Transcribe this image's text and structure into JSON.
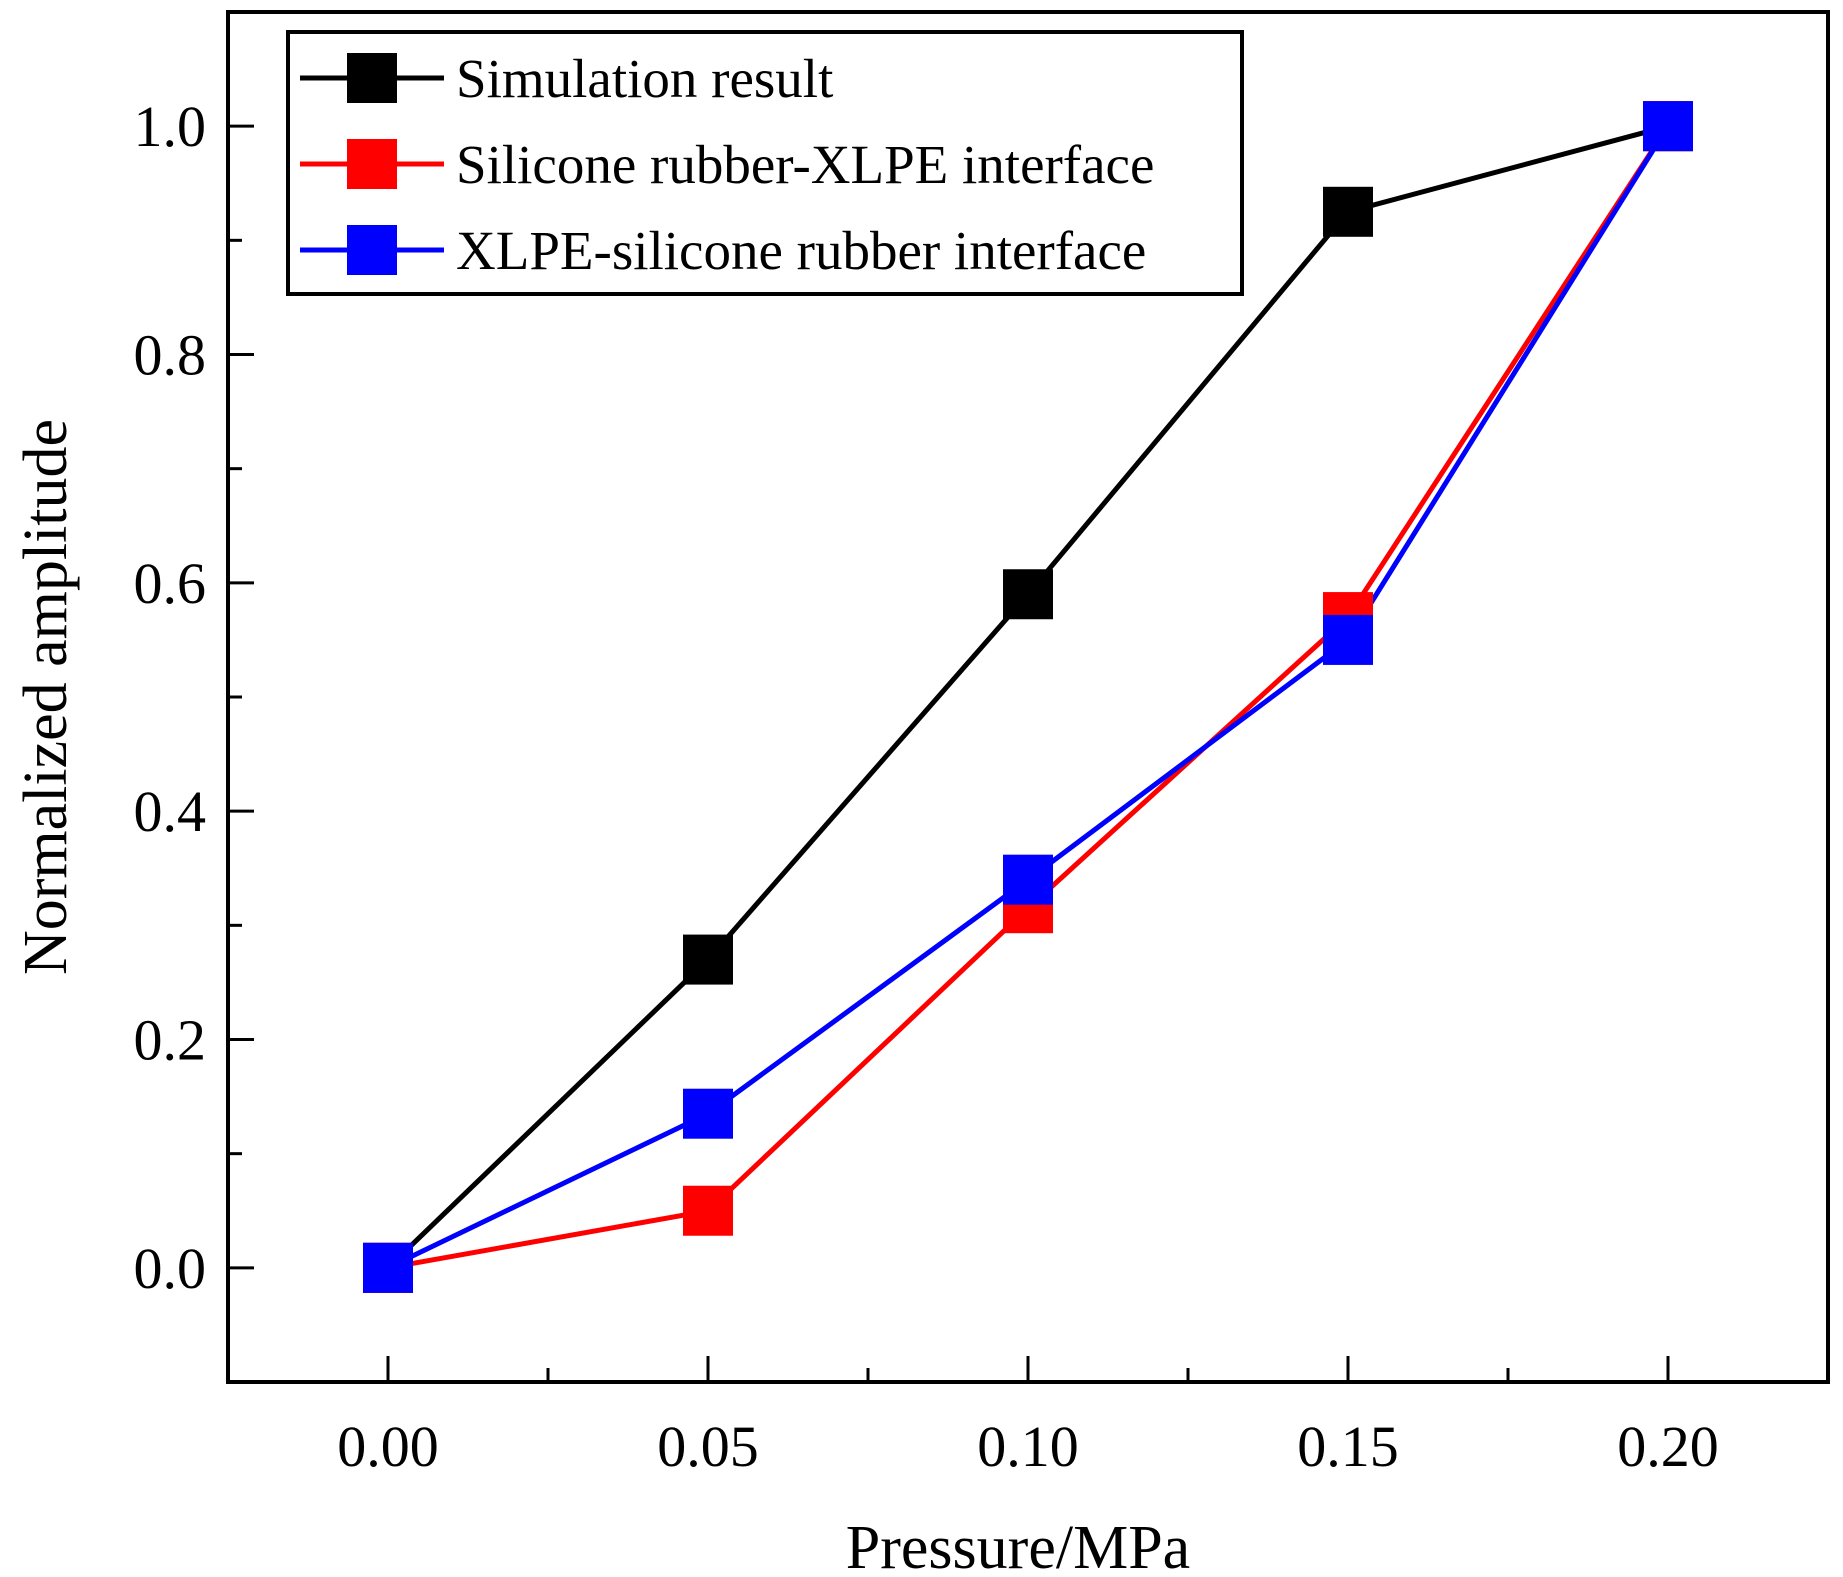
{
  "chart_data": {
    "type": "line",
    "title": "",
    "xlabel": "Pressure/MPa",
    "ylabel": "Normalized amplitude",
    "x": [
      0.0,
      0.05,
      0.1,
      0.15,
      0.2
    ],
    "xlim": [
      -0.025,
      0.225
    ],
    "ylim": [
      -0.1,
      1.1
    ],
    "xticks": [
      0.0,
      0.05,
      0.1,
      0.15,
      0.2
    ],
    "xtick_labels": [
      "0.00",
      "0.05",
      "0.10",
      "0.15",
      "0.20"
    ],
    "xminor_ticks": [
      0.025,
      0.075,
      0.125,
      0.175
    ],
    "yticks": [
      0.0,
      0.2,
      0.4,
      0.6,
      0.8,
      1.0
    ],
    "ytick_labels": [
      "0.0",
      "0.2",
      "0.4",
      "0.6",
      "0.8",
      "1.0"
    ],
    "yminor_ticks": [
      0.1,
      0.3,
      0.5,
      0.7,
      0.9
    ],
    "grid": false,
    "legend_position": "top-left",
    "series": [
      {
        "name": "Simulation result",
        "color": "#000000",
        "marker": "square",
        "values": [
          0.0,
          0.27,
          0.59,
          0.925,
          1.0
        ]
      },
      {
        "name": "Silicone rubber-XLPE interface",
        "color": "#ff0000",
        "marker": "square",
        "values": [
          0.0,
          0.05,
          0.315,
          0.57,
          1.0
        ]
      },
      {
        "name": "XLPE-silicone rubber interface",
        "color": "#0000ff",
        "marker": "square",
        "values": [
          0.0,
          0.135,
          0.34,
          0.55,
          1.0
        ]
      }
    ]
  }
}
